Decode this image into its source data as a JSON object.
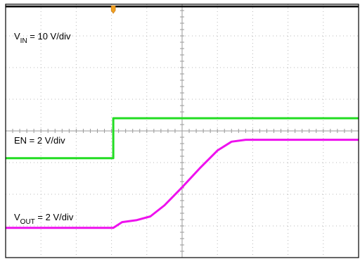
{
  "chart_data": {
    "type": "line",
    "title": "",
    "xlabel": "",
    "ylabel": "",
    "grid": true,
    "x_divisions": 10,
    "y_divisions": 8,
    "xlim": [
      0,
      10
    ],
    "ylim": [
      -4,
      4
    ],
    "trigger_marker": {
      "x": 3.05,
      "color": "#f0a020"
    },
    "series": [
      {
        "name": "VIN",
        "label": {
          "main": "V",
          "sub": "IN",
          "suffix": " = 10 V/div"
        },
        "color": "#000000",
        "x": [
          0,
          10
        ],
        "y": [
          3.93,
          3.93
        ]
      },
      {
        "name": "EN",
        "label": {
          "main": "EN = 2 V/div",
          "sub": "",
          "suffix": ""
        },
        "color": "#22dd22",
        "x": [
          0,
          3.05,
          3.05,
          10
        ],
        "y": [
          -0.86,
          -0.86,
          0.4,
          0.4
        ]
      },
      {
        "name": "VOUT",
        "label": {
          "main": "V",
          "sub": "OUT",
          "suffix": " = 2 V/div"
        },
        "color": "#ee11ee",
        "x": [
          0,
          3.05,
          3.3,
          3.7,
          4.1,
          4.5,
          5.0,
          5.5,
          6.0,
          6.4,
          6.8,
          10
        ],
        "y": [
          -3.06,
          -3.06,
          -2.88,
          -2.82,
          -2.7,
          -2.35,
          -1.78,
          -1.18,
          -0.62,
          -0.34,
          -0.28,
          -0.28
        ]
      }
    ]
  }
}
